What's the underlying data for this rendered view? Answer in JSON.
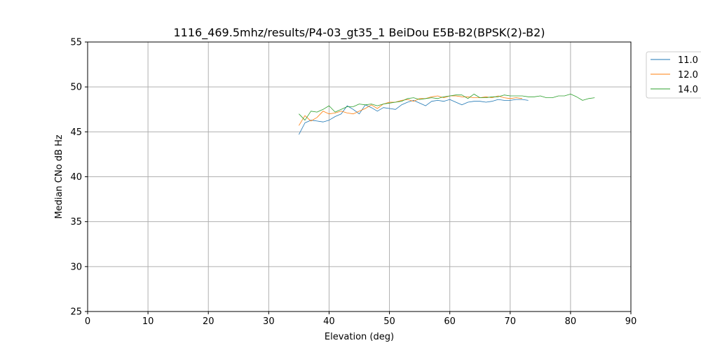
{
  "chart_data": {
    "type": "line",
    "title": "1116_469.5mhz/results/P4-03_gt35_1 BeiDou E5B-B2(BPSK(2)-B2)",
    "xlabel": "Elevation (deg)",
    "ylabel": "Median CNo dB Hz",
    "xlim": [
      0,
      90
    ],
    "ylim": [
      25,
      55
    ],
    "xticks": [
      0,
      10,
      20,
      30,
      40,
      50,
      60,
      70,
      80,
      90
    ],
    "yticks": [
      25,
      30,
      35,
      40,
      45,
      50,
      55
    ],
    "grid": true,
    "legend_position": "outside-top-right",
    "series": [
      {
        "name": "11.0",
        "color": "#1f77b4",
        "x": [
          35,
          36,
          37,
          38,
          39,
          40,
          41,
          42,
          43,
          44,
          45,
          46,
          47,
          48,
          49,
          50,
          51,
          52,
          53,
          54,
          55,
          56,
          57,
          58,
          59,
          60,
          61,
          62,
          63,
          64,
          65,
          66,
          67,
          68,
          69,
          70,
          71,
          72,
          73
        ],
        "y": [
          44.7,
          46.0,
          46.3,
          46.2,
          46.1,
          46.3,
          46.7,
          47.0,
          47.9,
          47.5,
          47.0,
          48.0,
          47.7,
          47.3,
          47.7,
          47.6,
          47.5,
          48.0,
          48.3,
          48.5,
          48.2,
          47.9,
          48.4,
          48.5,
          48.4,
          48.6,
          48.3,
          48.0,
          48.3,
          48.4,
          48.4,
          48.3,
          48.4,
          48.6,
          48.5,
          48.5,
          48.6,
          48.6,
          48.5
        ]
      },
      {
        "name": "12.0",
        "color": "#ff7f0e",
        "x": [
          35,
          36,
          37,
          38,
          39,
          40,
          41,
          42,
          43,
          44,
          45,
          46,
          47,
          48,
          49,
          50,
          51,
          52,
          53,
          54,
          55,
          56,
          57,
          58,
          59,
          60,
          61,
          62,
          63,
          64,
          65,
          66,
          67,
          68,
          69,
          70,
          71,
          72
        ],
        "y": [
          45.7,
          46.8,
          46.2,
          46.6,
          47.3,
          47.0,
          47.1,
          47.3,
          47.1,
          47.0,
          47.3,
          47.6,
          48.0,
          47.6,
          48.1,
          48.3,
          48.3,
          48.5,
          48.6,
          48.4,
          48.7,
          48.7,
          48.9,
          49.0,
          48.8,
          49.0,
          49.0,
          48.9,
          48.9,
          48.8,
          48.8,
          48.9,
          48.8,
          49.0,
          48.8,
          48.7,
          48.8,
          48.7
        ]
      },
      {
        "name": "14.0",
        "color": "#2ca02c",
        "x": [
          35,
          36,
          37,
          38,
          39,
          40,
          41,
          42,
          43,
          44,
          45,
          46,
          47,
          48,
          49,
          50,
          51,
          52,
          53,
          54,
          55,
          56,
          57,
          58,
          59,
          60,
          61,
          62,
          63,
          64,
          65,
          66,
          67,
          68,
          69,
          70,
          71,
          72,
          73,
          74,
          75,
          76,
          77,
          78,
          79,
          80,
          81,
          82,
          83,
          84
        ],
        "y": [
          47.0,
          46.3,
          47.3,
          47.2,
          47.5,
          47.9,
          47.2,
          47.5,
          47.8,
          47.8,
          48.1,
          48.0,
          48.1,
          47.9,
          48.1,
          48.2,
          48.3,
          48.4,
          48.7,
          48.8,
          48.6,
          48.7,
          48.8,
          48.7,
          48.9,
          49.0,
          49.1,
          49.1,
          48.7,
          49.2,
          48.8,
          48.8,
          48.9,
          48.9,
          49.1,
          49.0,
          49.0,
          49.0,
          48.9,
          48.9,
          49.0,
          48.8,
          48.8,
          49.0,
          49.0,
          49.2,
          48.9,
          48.5,
          48.7,
          48.8
        ]
      }
    ]
  }
}
